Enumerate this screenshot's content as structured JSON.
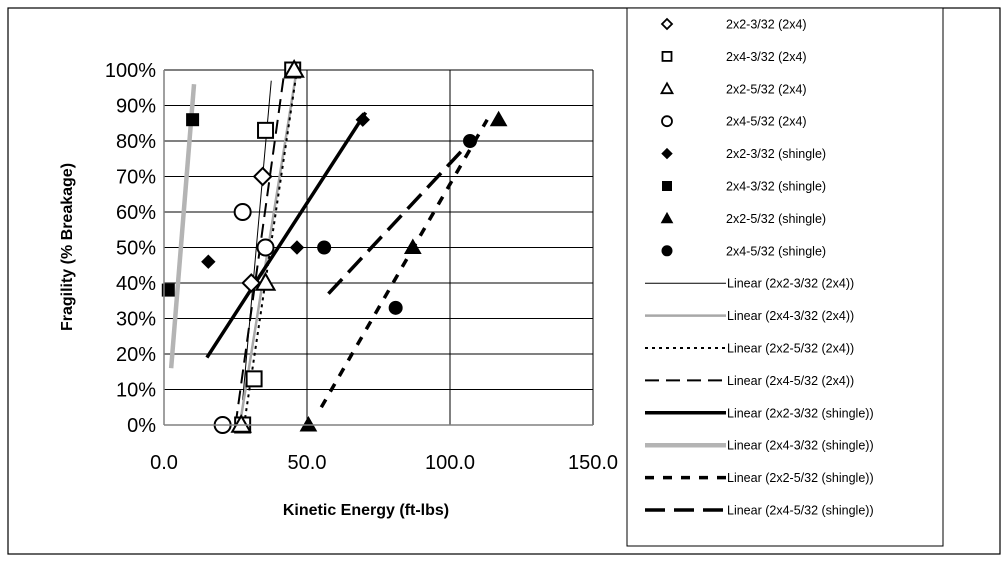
{
  "chart_data": {
    "type": "scatter",
    "title": "",
    "xlabel": "Kinetic Energy (ft-lbs)",
    "ylabel": "Fragility (% Breakage)",
    "xlim": [
      0,
      150
    ],
    "ylim": [
      0,
      100
    ],
    "x_ticks": [
      "0.0",
      "50.0",
      "100.0",
      "150.0"
    ],
    "y_ticks": [
      "0%",
      "10%",
      "20%",
      "30%",
      "40%",
      "50%",
      "60%",
      "70%",
      "80%",
      "90%",
      "100%"
    ],
    "grid": "both",
    "legend_position": "right",
    "series": [
      {
        "name": "2x2-3/32 (2x4)",
        "marker": "diamond-open",
        "points": [
          [
            30.5,
            40
          ],
          [
            34.5,
            70
          ]
        ]
      },
      {
        "name": "2x4-3/32 (2x4)",
        "marker": "square-open",
        "points": [
          [
            27.5,
            0
          ],
          [
            31.5,
            13
          ],
          [
            35.5,
            83
          ],
          [
            45,
            100
          ]
        ]
      },
      {
        "name": "2x2-5/32 (2x4)",
        "marker": "triangle-open",
        "points": [
          [
            27,
            0
          ],
          [
            35.5,
            40
          ],
          [
            45.5,
            100
          ]
        ]
      },
      {
        "name": "2x4-5/32 (2x4)",
        "marker": "circle-open",
        "points": [
          [
            20.5,
            0
          ],
          [
            27.5,
            60
          ],
          [
            35.5,
            50
          ]
        ]
      },
      {
        "name": "2x2-3/32 (shingle)",
        "marker": "diamond-filled",
        "points": [
          [
            15.5,
            46
          ],
          [
            46.5,
            50
          ],
          [
            69.5,
            86
          ]
        ]
      },
      {
        "name": "2x4-3/32 (shingle)",
        "marker": "square-filled",
        "points": [
          [
            1.5,
            38
          ],
          [
            10,
            86
          ]
        ]
      },
      {
        "name": "2x2-5/32 (shingle)",
        "marker": "triangle-filled",
        "points": [
          [
            50.5,
            0
          ],
          [
            87,
            50
          ],
          [
            117,
            86
          ]
        ]
      },
      {
        "name": "2x4-5/32 (shingle)",
        "marker": "circle-filled",
        "points": [
          [
            56,
            50
          ],
          [
            81,
            33
          ],
          [
            107,
            80
          ]
        ]
      }
    ],
    "trendlines": [
      {
        "name": "Linear (2x2-3/32 (2x4))",
        "style": "thin",
        "from": [
          27.5,
          7
        ],
        "to": [
          37.5,
          97
        ]
      },
      {
        "name": "Linear (2x4-3/32 (2x4))",
        "style": "gray",
        "from": [
          26.5,
          0
        ],
        "to": [
          46,
          98
        ]
      },
      {
        "name": "Linear (2x2-5/32 (2x4))",
        "style": "dotted",
        "from": [
          28,
          0
        ],
        "to": [
          46.5,
          100
        ]
      },
      {
        "name": "Linear (2x4-5/32 (2x4))",
        "style": "dashed",
        "from": [
          25,
          0
        ],
        "to": [
          42,
          99
        ]
      },
      {
        "name": "Linear (2x2-3/32 (shingle))",
        "style": "thick",
        "from": [
          15,
          19
        ],
        "to": [
          70.5,
          88
        ]
      },
      {
        "name": "Linear (2x4-3/32 (shingle))",
        "style": "gray-thick",
        "from": [
          2.5,
          16
        ],
        "to": [
          10.5,
          96
        ]
      },
      {
        "name": "Linear (2x2-5/32 (shingle))",
        "style": "thick-dashed",
        "from": [
          55,
          5
        ],
        "to": [
          113,
          86
        ]
      },
      {
        "name": "Linear (2x4-5/32 (shingle))",
        "style": "long-dashed",
        "from": [
          57.5,
          37
        ],
        "to": [
          105,
          78
        ]
      }
    ]
  }
}
